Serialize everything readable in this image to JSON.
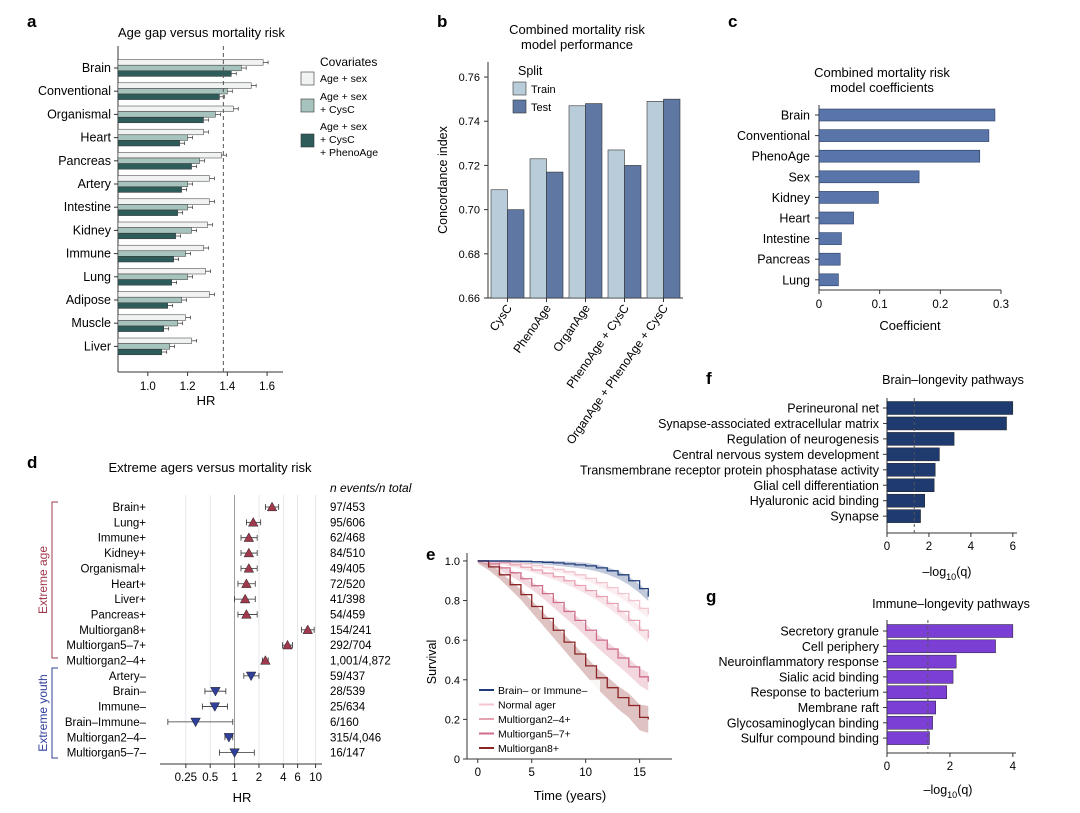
{
  "colors": {
    "a_age_sex": "#f1f3f3",
    "a_cysc": "#a7c3bd",
    "a_pheno": "#2e5c5a",
    "b_train": "#b8ccd9",
    "b_test": "#5e78a3",
    "c_bar": "#5874a9",
    "f_bar": "#1e3a6e",
    "g_bar": "#7b3fd6",
    "d_extreme_age": "#a0394e",
    "d_extreme_youth": "#2f3f9a",
    "e_brain_immune": "#1f3d7a",
    "e_normal": "#f2c6cf",
    "e_m24": "#e7a2b2",
    "e_m57": "#cf6e88",
    "e_m8": "#8b2424"
  },
  "panels": {
    "a": "a",
    "b": "b",
    "c": "c",
    "d": "d",
    "e": "e",
    "f": "f",
    "g": "g"
  },
  "chart_data": [
    {
      "id": "a",
      "type": "bar",
      "title": "Age gap versus mortality risk",
      "xlabel": "HR",
      "xlim": [
        0.85,
        1.68
      ],
      "xticks": [
        "1.0",
        "1.2",
        "1.4",
        "1.6"
      ],
      "reference_line": 1.38,
      "legend_title": "Covariates",
      "legend": [
        "Age + sex",
        "Age + sex + CysC",
        "Age + sex + CysC + PhenoAge"
      ],
      "categories": [
        "Brain",
        "Conventional",
        "Organismal",
        "Heart",
        "Pancreas",
        "Artery",
        "Intestine",
        "Kidney",
        "Immune",
        "Lung",
        "Adipose",
        "Muscle",
        "Liver"
      ],
      "series": [
        {
          "name": "Age + sex",
          "values": [
            1.58,
            1.52,
            1.43,
            1.28,
            1.37,
            1.31,
            1.31,
            1.3,
            1.28,
            1.29,
            1.31,
            1.19,
            1.22
          ]
        },
        {
          "name": "Age + sex + CysC",
          "values": [
            1.47,
            1.4,
            1.34,
            1.2,
            1.26,
            1.2,
            1.2,
            1.22,
            1.19,
            1.2,
            1.17,
            1.15,
            1.11
          ]
        },
        {
          "name": "Age + sex + CysC + PhenoAge",
          "values": [
            1.42,
            1.36,
            1.28,
            1.16,
            1.22,
            1.17,
            1.15,
            1.14,
            1.13,
            1.12,
            1.1,
            1.08,
            1.07
          ]
        }
      ]
    },
    {
      "id": "b",
      "type": "bar",
      "title": "Combined mortality risk model performance",
      "ylabel": "Concordance index",
      "ylim": [
        0.66,
        0.765
      ],
      "yticks": [
        "0.66",
        "0.68",
        "0.70",
        "0.72",
        "0.74",
        "0.76"
      ],
      "legend_title": "Split",
      "legend": [
        "Train",
        "Test"
      ],
      "categories": [
        "CysC",
        "PhenoAge",
        "OrganAge",
        "PhenoAge + CysC",
        "OrganAge + PhenoAge + CysC"
      ],
      "series": [
        {
          "name": "Train",
          "values": [
            0.709,
            0.723,
            0.747,
            0.727,
            0.749
          ]
        },
        {
          "name": "Test",
          "values": [
            0.7,
            0.717,
            0.748,
            0.72,
            0.75
          ]
        }
      ]
    },
    {
      "id": "c",
      "type": "bar",
      "title": "Combined mortality risk model coefficients",
      "xlabel": "Coefficient",
      "xlim": [
        0,
        0.3
      ],
      "xticks": [
        "0",
        "0.1",
        "0.2",
        "0.3"
      ],
      "categories": [
        "Brain",
        "Conventional",
        "PhenoAge",
        "Sex",
        "Kidney",
        "Heart",
        "Intestine",
        "Pancreas",
        "Lung"
      ],
      "values": [
        0.29,
        0.28,
        0.265,
        0.165,
        0.098,
        0.057,
        0.037,
        0.035,
        0.032
      ]
    },
    {
      "id": "d",
      "type": "scatter",
      "title": "Extreme agers versus mortality risk",
      "xlabel": "HR",
      "xscale": "log",
      "xlim": [
        0.12,
        12
      ],
      "xticks": [
        "0.25",
        "0.5",
        "1",
        "2",
        "4",
        "6",
        "10"
      ],
      "count_header": "n events/n total",
      "group_labels": [
        "Extreme age",
        "Extreme youth"
      ],
      "rows": [
        {
          "label": "Brain+",
          "hr": 2.9,
          "lo": 2.4,
          "hi": 3.5,
          "n": "97/453",
          "group": "age"
        },
        {
          "label": "Lung+",
          "hr": 1.7,
          "lo": 1.4,
          "hi": 2.1,
          "n": "95/606",
          "group": "age"
        },
        {
          "label": "Immune+",
          "hr": 1.5,
          "lo": 1.2,
          "hi": 1.9,
          "n": "62/468",
          "group": "age"
        },
        {
          "label": "Kidney+",
          "hr": 1.5,
          "lo": 1.2,
          "hi": 1.9,
          "n": "84/510",
          "group": "age"
        },
        {
          "label": "Organismal+",
          "hr": 1.5,
          "lo": 1.2,
          "hi": 1.9,
          "n": "49/405",
          "group": "age"
        },
        {
          "label": "Heart+",
          "hr": 1.4,
          "lo": 1.1,
          "hi": 1.8,
          "n": "72/520",
          "group": "age"
        },
        {
          "label": "Liver+",
          "hr": 1.35,
          "lo": 1.0,
          "hi": 1.8,
          "n": "41/398",
          "group": "age"
        },
        {
          "label": "Pancreas+",
          "hr": 1.4,
          "lo": 1.1,
          "hi": 1.9,
          "n": "54/459",
          "group": "age"
        },
        {
          "label": "Multiorgan8+",
          "hr": 8.0,
          "lo": 6.7,
          "hi": 9.6,
          "n": "154/241",
          "group": "age"
        },
        {
          "label": "Multiorgan5–7+",
          "hr": 4.5,
          "lo": 3.9,
          "hi": 5.2,
          "n": "292/704",
          "group": "age"
        },
        {
          "label": "Multiorgan2–4+",
          "hr": 2.4,
          "lo": 2.2,
          "hi": 2.6,
          "n": "1,001/4,872",
          "group": "age"
        },
        {
          "label": "Artery–",
          "hr": 1.6,
          "lo": 1.3,
          "hi": 2.0,
          "n": "59/437",
          "group": "youth"
        },
        {
          "label": "Brain–",
          "hr": 0.58,
          "lo": 0.43,
          "hi": 0.78,
          "n": "28/539",
          "group": "youth"
        },
        {
          "label": "Immune–",
          "hr": 0.57,
          "lo": 0.4,
          "hi": 0.82,
          "n": "25/634",
          "group": "youth"
        },
        {
          "label": "Brain–Immune–",
          "hr": 0.33,
          "lo": 0.15,
          "hi": 0.95,
          "n": "6/160",
          "group": "youth"
        },
        {
          "label": "Multiorgan2–4–",
          "hr": 0.85,
          "lo": 0.76,
          "hi": 0.95,
          "n": "315/4,046",
          "group": "youth"
        },
        {
          "label": "Multiorgan5–7–",
          "hr": 1.0,
          "lo": 0.65,
          "hi": 1.75,
          "n": "16/147",
          "group": "youth"
        }
      ]
    },
    {
      "id": "e",
      "type": "line",
      "xlabel": "Time (years)",
      "ylabel": "Survival",
      "xlim": [
        -1,
        18
      ],
      "ylim": [
        0,
        1.04
      ],
      "xticks": [
        "0",
        "5",
        "10",
        "15"
      ],
      "yticks": [
        "0",
        "0.2",
        "0.4",
        "0.6",
        "0.8",
        "1.0"
      ],
      "x": [
        0,
        1,
        2,
        3,
        4,
        5,
        6,
        7,
        8,
        9,
        10,
        11,
        12,
        13,
        14,
        15,
        15.8
      ],
      "series": [
        {
          "name": "Brain– or Immune–",
          "values": [
            1.0,
            1.0,
            1.0,
            0.999,
            0.998,
            0.996,
            0.993,
            0.99,
            0.985,
            0.98,
            0.975,
            0.965,
            0.95,
            0.93,
            0.9,
            0.86,
            0.82
          ],
          "band": 0.02
        },
        {
          "name": "Normal ager",
          "values": [
            1.0,
            0.998,
            0.995,
            0.99,
            0.985,
            0.977,
            0.968,
            0.957,
            0.945,
            0.93,
            0.912,
            0.89,
            0.865,
            0.835,
            0.8,
            0.76,
            0.73
          ],
          "band": 0.015
        },
        {
          "name": "Multiorgan2–4+",
          "values": [
            1.0,
            0.996,
            0.99,
            0.98,
            0.968,
            0.954,
            0.938,
            0.92,
            0.9,
            0.876,
            0.85,
            0.82,
            0.785,
            0.745,
            0.7,
            0.65,
            0.61
          ],
          "band": 0.02
        },
        {
          "name": "Multiorgan5–7+",
          "values": [
            1.0,
            0.985,
            0.965,
            0.94,
            0.91,
            0.875,
            0.835,
            0.79,
            0.745,
            0.7,
            0.65,
            0.6,
            0.555,
            0.51,
            0.465,
            0.415,
            0.39
          ],
          "band": 0.04
        },
        {
          "name": "Multiorgan8+",
          "values": [
            1.0,
            0.97,
            0.93,
            0.88,
            0.83,
            0.77,
            0.71,
            0.65,
            0.59,
            0.53,
            0.47,
            0.41,
            0.36,
            0.31,
            0.27,
            0.21,
            0.2
          ],
          "band": 0.06
        }
      ]
    },
    {
      "id": "f",
      "type": "bar",
      "title": "Brain–longevity pathways",
      "xlabel_prefix": "–log",
      "xlabel_sub": "10",
      "xlabel_suffix": "(q)",
      "xlim": [
        0,
        6.2
      ],
      "xticks": [
        "0",
        "2",
        "4",
        "6"
      ],
      "reference_line": 1.3,
      "categories": [
        "Perineuronal net",
        "Synapse-associated extracellular matrix",
        "Regulation of neurogenesis",
        "Central nervous system development",
        "Transmembrane receptor protein phosphatase activity",
        "Glial cell differentiation",
        "Hyaluronic acid binding",
        "Synapse"
      ],
      "values": [
        6.0,
        5.7,
        3.2,
        2.5,
        2.3,
        2.25,
        1.8,
        1.6
      ]
    },
    {
      "id": "g",
      "type": "bar",
      "title": "Immune–longevity pathways",
      "xlabel_prefix": "–log",
      "xlabel_sub": "10",
      "xlabel_suffix": "(q)",
      "xlim": [
        0,
        4.1
      ],
      "xticks": [
        "0",
        "2",
        "4"
      ],
      "reference_line": 1.3,
      "categories": [
        "Secretory granule",
        "Cell periphery",
        "Neuroinflammatory response",
        "Sialic acid binding",
        "Response to bacterium",
        "Membrane raft",
        "Glycosaminoglycan binding",
        "Sulfur compound binding"
      ],
      "values": [
        4.0,
        3.45,
        2.2,
        2.1,
        1.9,
        1.55,
        1.45,
        1.35
      ]
    }
  ]
}
